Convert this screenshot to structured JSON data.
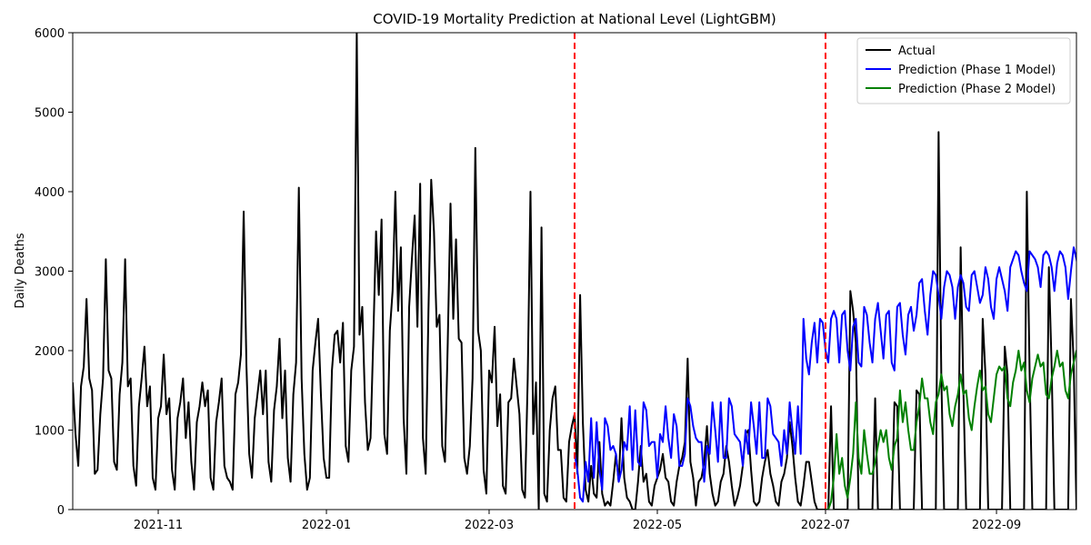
{
  "chart_data": {
    "type": "line",
    "title": "COVID-19 Mortality Prediction at National Level (LightGBM)",
    "xlabel": "",
    "ylabel": "Daily Deaths",
    "xlim": [
      "2021-10-01",
      "2022-09-30"
    ],
    "ylim": [
      0,
      6000
    ],
    "y_ticks": [
      0,
      1000,
      2000,
      3000,
      4000,
      5000,
      6000
    ],
    "x_ticks": [
      {
        "date": "2021-11-01",
        "label": "2021-11"
      },
      {
        "date": "2022-01-01",
        "label": "2022-01"
      },
      {
        "date": "2022-03-01",
        "label": "2022-03"
      },
      {
        "date": "2022-05-01",
        "label": "2022-05"
      },
      {
        "date": "2022-07-01",
        "label": "2022-07"
      },
      {
        "date": "2022-09-01",
        "label": "2022-09"
      }
    ],
    "grid": false,
    "legend_position": "top-right",
    "vlines": [
      {
        "date": "2022-04-01",
        "color": "#ff0000",
        "style": "dashed"
      },
      {
        "date": "2022-07-01",
        "color": "#ff0000",
        "style": "dashed"
      }
    ],
    "series": [
      {
        "name": "Actual",
        "color": "#000000",
        "x_start": "2021-10-01",
        "values": [
          1600,
          950,
          550,
          1550,
          1800,
          2650,
          1650,
          1500,
          450,
          500,
          1200,
          1650,
          3150,
          1750,
          1650,
          600,
          500,
          1450,
          1850,
          3150,
          1550,
          1650,
          550,
          300,
          1300,
          1650,
          2050,
          1300,
          1550,
          400,
          250,
          1150,
          1300,
          1950,
          1200,
          1400,
          500,
          250,
          1150,
          1350,
          1650,
          900,
          1350,
          600,
          250,
          1100,
          1300,
          1600,
          1300,
          1500,
          400,
          250,
          1100,
          1350,
          1650,
          550,
          400,
          350,
          250,
          1450,
          1600,
          1950,
          3750,
          1800,
          700,
          400,
          1150,
          1450,
          1750,
          1200,
          1750,
          600,
          350,
          1250,
          1550,
          2150,
          1150,
          1750,
          650,
          350,
          1450,
          1850,
          4050,
          1650,
          700,
          250,
          400,
          1750,
          2100,
          2400,
          1450,
          650,
          400,
          400,
          1750,
          2200,
          2250,
          1850,
          2350,
          800,
          600,
          1750,
          2050,
          6000,
          2200,
          2550,
          1350,
          750,
          900,
          2150,
          3500,
          2700,
          3650,
          950,
          700,
          2250,
          2750,
          4000,
          2500,
          3300,
          1150,
          450,
          2550,
          3150,
          3700,
          2300,
          4100,
          900,
          450,
          2500,
          4150,
          3500,
          2300,
          2450,
          800,
          600,
          2100,
          3850,
          2400,
          3400,
          2150,
          2100,
          650,
          450,
          800,
          1650,
          4550,
          2250,
          2000,
          500,
          200,
          1750,
          1600,
          2300,
          1050,
          1450,
          300,
          200,
          1350,
          1400,
          1900,
          1550,
          1200,
          250,
          150,
          1650,
          4000,
          950,
          1600,
          0,
          3550,
          200,
          100,
          1000,
          1400,
          1550,
          750,
          750,
          150,
          100,
          850,
          1050,
          1200,
          450,
          2700,
          1100,
          250,
          100,
          550,
          200,
          150,
          850,
          200,
          50,
          100,
          50,
          350,
          700,
          350,
          1150,
          400,
          150,
          100,
          0,
          0,
          350,
          800,
          350,
          450,
          100,
          50,
          300,
          400,
          500,
          700,
          400,
          350,
          100,
          50,
          350,
          550,
          650,
          850,
          1900,
          600,
          400,
          50,
          350,
          400,
          600,
          1050,
          450,
          200,
          50,
          100,
          350,
          450,
          800,
          600,
          300,
          50,
          150,
          300,
          550,
          950,
          1000,
          500,
          100,
          50,
          100,
          400,
          600,
          750,
          450,
          300,
          100,
          50,
          350,
          450,
          650,
          1100,
          800,
          400,
          100,
          50,
          300,
          600,
          600,
          350,
          100,
          0,
          0,
          0,
          0,
          0,
          1300,
          0,
          0,
          0,
          0,
          0,
          0,
          2750,
          2500,
          2100,
          0,
          0,
          0,
          0,
          0,
          0,
          1400,
          0,
          0,
          0,
          0,
          0,
          0,
          1350,
          1300,
          0,
          0,
          0,
          0,
          0,
          0,
          1500,
          1450,
          0,
          0,
          0,
          0,
          0,
          0,
          4750,
          1650,
          0,
          0,
          0,
          0,
          0,
          0,
          3300,
          1500,
          0,
          0,
          0,
          0,
          0,
          0,
          2400,
          1700,
          0,
          0,
          0,
          0,
          0,
          0,
          2050,
          1700,
          0,
          0,
          0,
          0,
          0,
          0,
          4000,
          1750,
          0,
          0,
          0,
          0,
          0,
          0,
          3050,
          1800,
          0,
          0,
          0,
          0,
          0,
          0,
          2650,
          1850,
          0,
          0,
          0,
          0,
          0,
          0,
          2550,
          1900,
          0,
          0,
          0,
          0,
          0,
          0,
          2800,
          1850
        ]
      },
      {
        "name": "Prediction (Phase 1 Model)",
        "color": "#0000ff",
        "x_start": "2022-04-01",
        "values": [
          700,
          500,
          150,
          100,
          600,
          350,
          1150,
          400,
          1100,
          500,
          250,
          1150,
          1050,
          750,
          800,
          700,
          350,
          500,
          850,
          750,
          1300,
          500,
          1250,
          600,
          550,
          1350,
          1250,
          800,
          850,
          850,
          400,
          950,
          850,
          1300,
          900,
          650,
          1200,
          1050,
          550,
          550,
          700,
          1400,
          1300,
          1050,
          900,
          850,
          850,
          350,
          800,
          700,
          1350,
          1000,
          600,
          1350,
          650,
          650,
          1400,
          1300,
          950,
          900,
          850,
          550,
          1000,
          700,
          1350,
          1050,
          700,
          1350,
          650,
          650,
          1400,
          1300,
          950,
          900,
          850,
          550,
          1000,
          700,
          1350,
          1000,
          700,
          1300,
          700,
          2400,
          1900,
          1700,
          2100,
          2350,
          1850,
          2400,
          2350,
          2000,
          1850,
          2400,
          2500,
          2400,
          1850,
          2450,
          2500,
          2000,
          1750,
          2300,
          2400,
          1850,
          1800,
          2550,
          2450,
          2100,
          1850,
          2400,
          2600,
          2250,
          1900,
          2450,
          2500,
          1850,
          1750,
          2550,
          2600,
          2200,
          1950,
          2450,
          2550,
          2250,
          2450,
          2850,
          2900,
          2500,
          2200,
          2700,
          3000,
          2950,
          2700,
          2400,
          2800,
          3000,
          2950,
          2800,
          2400,
          2800,
          2950,
          2850,
          2550,
          2500,
          2950,
          3000,
          2800,
          2600,
          2700,
          3050,
          2900,
          2550,
          2400,
          2900,
          3050,
          2900,
          2750,
          2500,
          3050,
          3150,
          3250,
          3200,
          3000,
          2850,
          2750,
          3250,
          3200,
          3150,
          3050,
          2800,
          3200,
          3250,
          3200,
          3050,
          2750,
          3100,
          3250,
          3200,
          3050,
          2650,
          3000,
          3300,
          3150,
          2950,
          2700,
          3050,
          3250,
          3200,
          3100,
          2750,
          3250,
          3200
        ]
      },
      {
        "name": "Prediction (Phase 2 Model)",
        "color": "#008000",
        "x_start": "2022-07-01",
        "values": [
          0,
          0,
          100,
          400,
          950,
          450,
          650,
          300,
          150,
          400,
          700,
          1350,
          650,
          450,
          1000,
          700,
          450,
          450,
          600,
          800,
          1000,
          850,
          1000,
          650,
          500,
          800,
          900,
          1500,
          1100,
          1350,
          1000,
          750,
          750,
          1100,
          1300,
          1650,
          1400,
          1400,
          1100,
          950,
          1350,
          1450,
          1700,
          1500,
          1550,
          1200,
          1050,
          1300,
          1450,
          1700,
          1450,
          1500,
          1150,
          1000,
          1300,
          1550,
          1750,
          1500,
          1550,
          1200,
          1100,
          1400,
          1700,
          1800,
          1750,
          1800,
          1400,
          1300,
          1600,
          1750,
          2000,
          1750,
          1850,
          1500,
          1350,
          1650,
          1800,
          1950,
          1800,
          1850,
          1450,
          1400,
          1650,
          1800,
          2000,
          1800,
          1850,
          1500,
          1400,
          1700,
          1850,
          2000,
          1850,
          1850
        ]
      }
    ]
  }
}
